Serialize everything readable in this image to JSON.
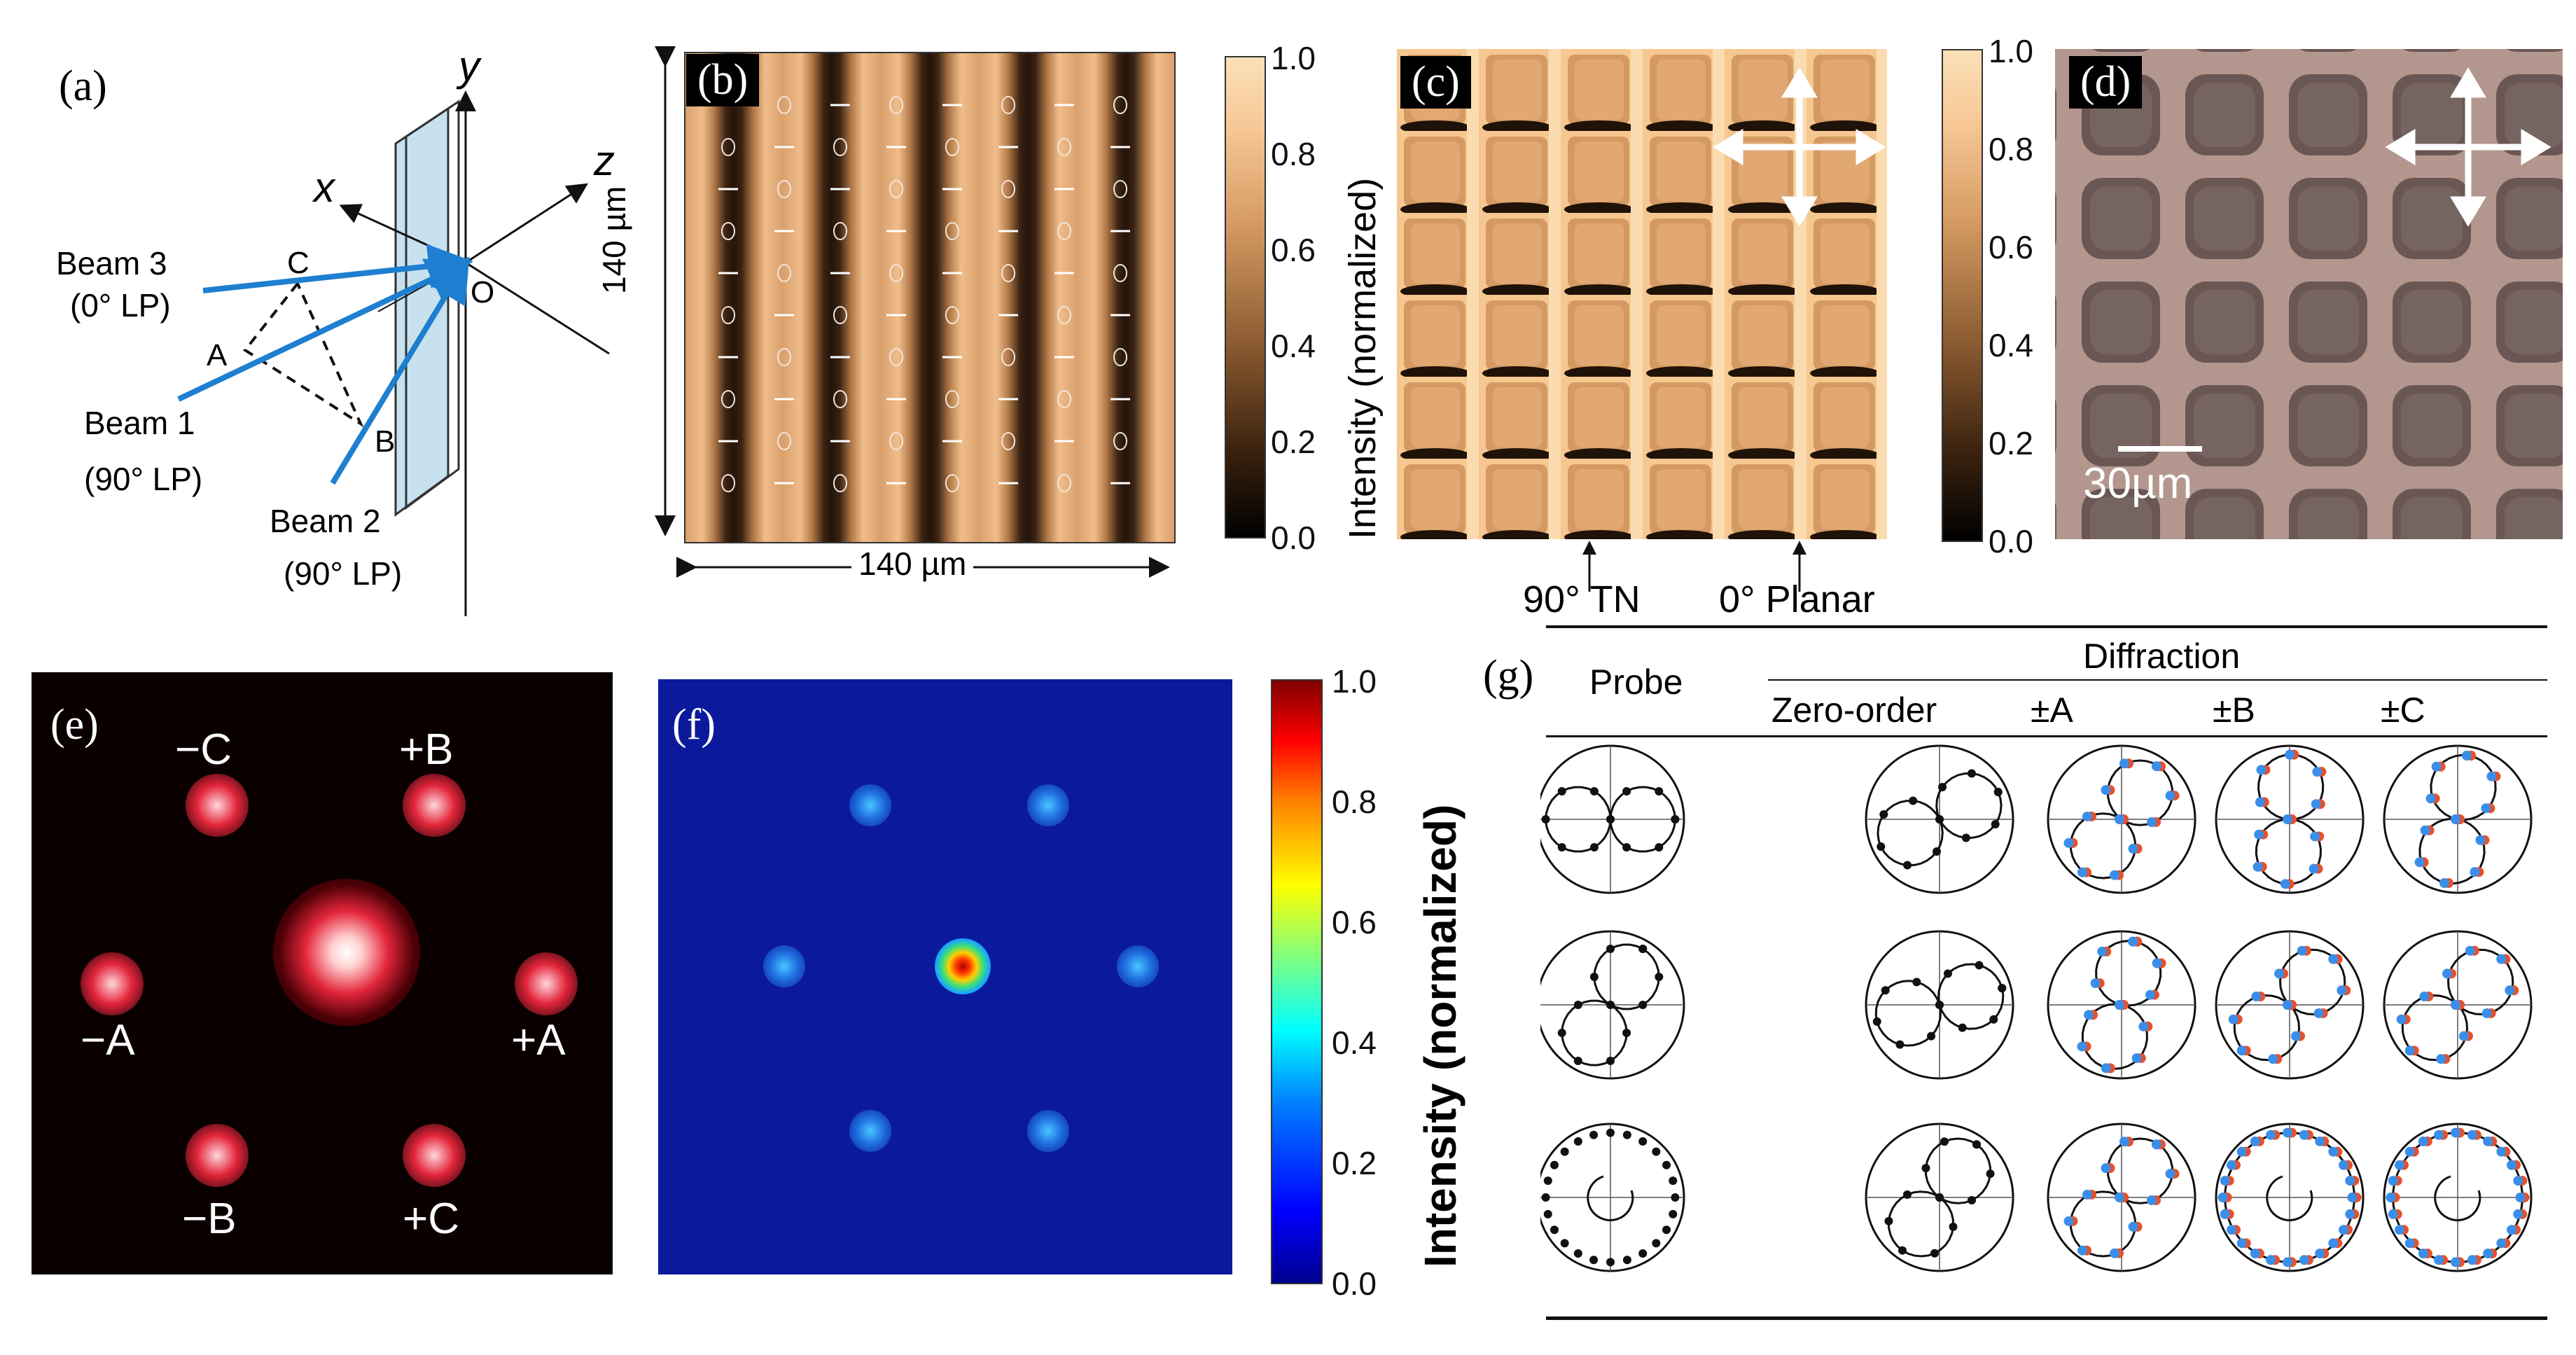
{
  "panels": {
    "a": {
      "letter": "(a)",
      "axes": {
        "x": "x",
        "y": "y",
        "z": "z"
      },
      "points": {
        "A": "A",
        "B": "B",
        "C": "C",
        "O": "O"
      },
      "beams": [
        {
          "name": "Beam 3",
          "pol": "(0° LP)"
        },
        {
          "name": "Beam 1",
          "pol": "(90° LP)"
        },
        {
          "name": "Beam 2",
          "pol": "(90° LP)"
        }
      ]
    },
    "b": {
      "letter": "(b)",
      "width_label": "140 µm",
      "height_label": "140 µm"
    },
    "c": {
      "letter": "(c)",
      "ylabel": "Intensity (normalized)",
      "marker_tn": "90° TN",
      "marker_planar": "0° Planar"
    },
    "d": {
      "letter": "(d)",
      "scale_label": "30µm"
    },
    "e": {
      "letter": "(e)",
      "orders": [
        "−C",
        "+B",
        "−A",
        "+A",
        "−B",
        "+C"
      ]
    },
    "f": {
      "letter": "(f)",
      "ylabel": "Intensity (normalized)"
    },
    "g": {
      "letter": "(g)",
      "header_probe": "Probe",
      "header_diffraction": "Diffraction",
      "columns": [
        "Zero-order",
        "±A",
        "±B",
        "±C"
      ]
    }
  },
  "colorbar_bc": {
    "ticks": [
      "1.0",
      "0.8",
      "0.6",
      "0.4",
      "0.2",
      "0.0"
    ]
  },
  "colorbar_f": {
    "ticks": [
      "1.0",
      "0.8",
      "0.6",
      "0.4",
      "0.2",
      "0.0"
    ]
  },
  "colors": {
    "accent_blue": "#1e7fd0",
    "measured_red": "#e8502a",
    "measured_blue": "#3b8ee8"
  }
}
